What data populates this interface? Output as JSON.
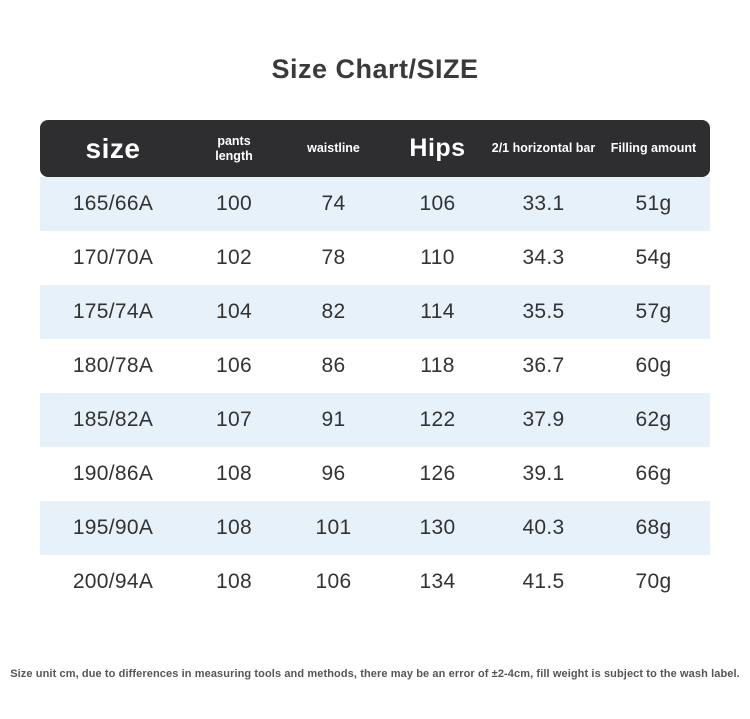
{
  "title": "Size Chart/SIZE",
  "table": {
    "headers": [
      {
        "id": "size",
        "label": "size"
      },
      {
        "id": "pants_length",
        "label": "pants length"
      },
      {
        "id": "waistline",
        "label": "waistline"
      },
      {
        "id": "hips",
        "label": "Hips"
      },
      {
        "id": "horizontal_bar",
        "label": "2/1 horizontal bar"
      },
      {
        "id": "filling_amount",
        "label": "Filling amount"
      }
    ],
    "rows": [
      {
        "cells": [
          "165/66A",
          "100",
          "74",
          "106",
          "33.1",
          "51g"
        ]
      },
      {
        "cells": [
          "170/70A",
          "102",
          "78",
          "110",
          "34.3",
          "54g"
        ]
      },
      {
        "cells": [
          "175/74A",
          "104",
          "82",
          "114",
          "35.5",
          "57g"
        ]
      },
      {
        "cells": [
          "180/78A",
          "106",
          "86",
          "118",
          "36.7",
          "60g"
        ]
      },
      {
        "cells": [
          "185/82A",
          "107",
          "91",
          "122",
          "37.9",
          "62g"
        ]
      },
      {
        "cells": [
          "190/86A",
          "108",
          "96",
          "126",
          "39.1",
          "66g"
        ]
      },
      {
        "cells": [
          "195/90A",
          "108",
          "101",
          "130",
          "40.3",
          "68g"
        ]
      },
      {
        "cells": [
          "200/94A",
          "108",
          "106",
          "134",
          "41.5",
          "70g"
        ]
      }
    ]
  },
  "footnote": "Size unit cm, due to differences in measuring tools and methods, there may be an error of ±2-4cm, fill weight is subject to the wash label.",
  "colors": {
    "header_bg": "#2e2e30",
    "header_text": "#ffffff",
    "row_alt_bg": "#e6f1fa",
    "cell_text": "#333333",
    "title_color": "#3a3a3a",
    "footnote_color": "#555555"
  },
  "chart_data": {
    "type": "table",
    "title": "Size Chart/SIZE",
    "columns": [
      "size",
      "pants length",
      "waistline",
      "Hips",
      "2/1 horizontal bar",
      "Filling amount"
    ],
    "rows": [
      [
        "165/66A",
        100,
        74,
        106,
        33.1,
        "51g"
      ],
      [
        "170/70A",
        102,
        78,
        110,
        34.3,
        "54g"
      ],
      [
        "175/74A",
        104,
        82,
        114,
        35.5,
        "57g"
      ],
      [
        "180/78A",
        106,
        86,
        118,
        36.7,
        "60g"
      ],
      [
        "185/82A",
        107,
        91,
        122,
        37.9,
        "62g"
      ],
      [
        "190/86A",
        108,
        96,
        126,
        39.1,
        "66g"
      ],
      [
        "195/90A",
        108,
        101,
        130,
        40.3,
        "68g"
      ],
      [
        "200/94A",
        108,
        106,
        134,
        41.5,
        "70g"
      ]
    ],
    "note": "Alternating white / light-blue row striping; dark rounded header bar; units cm except filling amount in grams"
  }
}
